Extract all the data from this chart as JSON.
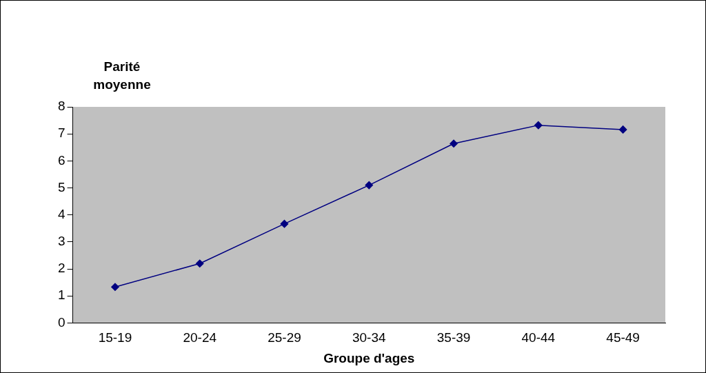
{
  "chart_data": {
    "type": "line",
    "ylabel": "Parité moyenne",
    "xlabel": "Groupe d'ages",
    "categories": [
      "15-19",
      "20-24",
      "25-29",
      "30-34",
      "35-39",
      "40-44",
      "45-49"
    ],
    "series": [
      {
        "color": "#000080",
        "values": [
          1.33,
          2.2,
          3.67,
          5.1,
          6.64,
          7.32,
          7.16
        ]
      }
    ],
    "ylim": [
      0,
      8
    ],
    "yticks": [
      0,
      1,
      2,
      3,
      4,
      5,
      6,
      7,
      8
    ],
    "grid": false,
    "legend": false,
    "marker": "diamond",
    "line_style": "solid"
  }
}
